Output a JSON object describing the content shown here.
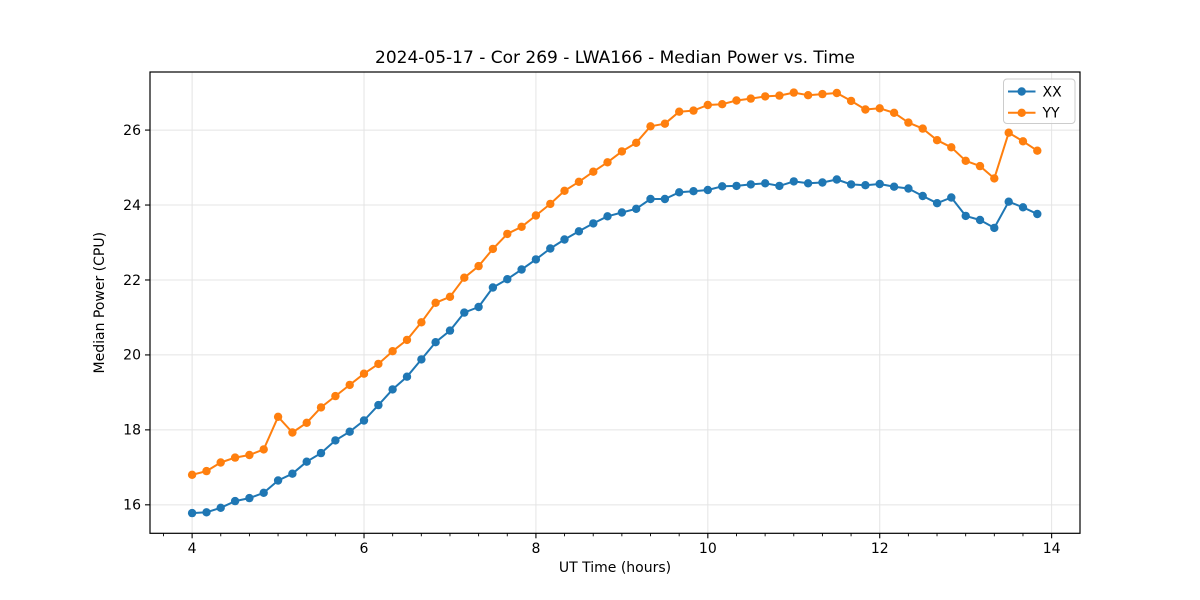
{
  "figure": {
    "title": "2024-05-17 - Cor 269 - LWA166 - Median Power vs. Time"
  },
  "chart_data": {
    "type": "line",
    "title": "2024-05-17 - Cor 269 - LWA166 - Median Power vs. Time",
    "xlabel": "UT Time (hours)",
    "ylabel": "Median Power (CPU)",
    "xlim": [
      3.51,
      14.33
    ],
    "ylim": [
      15.24,
      27.55
    ],
    "x_major_ticks": [
      4,
      6,
      8,
      10,
      12,
      14
    ],
    "y_major_ticks": [
      16,
      18,
      20,
      22,
      24,
      26
    ],
    "x_minor_tick_step": 0.33333,
    "grid": true,
    "grid_color": "#e4e4e4",
    "legend": {
      "position": "upper right"
    },
    "x": [
      4.0,
      4.167,
      4.333,
      4.5,
      4.667,
      4.833,
      5.0,
      5.167,
      5.333,
      5.5,
      5.667,
      5.833,
      6.0,
      6.167,
      6.333,
      6.5,
      6.667,
      6.833,
      7.0,
      7.167,
      7.333,
      7.5,
      7.667,
      7.833,
      8.0,
      8.167,
      8.333,
      8.5,
      8.667,
      8.833,
      9.0,
      9.167,
      9.333,
      9.5,
      9.667,
      9.833,
      10.0,
      10.167,
      10.333,
      10.5,
      10.667,
      10.833,
      11.0,
      11.167,
      11.333,
      11.5,
      11.667,
      11.833,
      12.0,
      12.167,
      12.333,
      12.5,
      12.667,
      12.833,
      13.0,
      13.167,
      13.333,
      13.5,
      13.667,
      13.833
    ],
    "series": [
      {
        "name": "XX",
        "color": "#1f77b4",
        "values": [
          15.78,
          15.8,
          15.92,
          16.1,
          16.18,
          16.32,
          16.65,
          16.83,
          17.15,
          17.38,
          17.72,
          17.95,
          18.25,
          18.66,
          19.08,
          19.42,
          19.88,
          20.34,
          20.65,
          21.13,
          21.28,
          21.8,
          22.02,
          22.28,
          22.55,
          22.84,
          23.08,
          23.3,
          23.51,
          23.7,
          23.8,
          23.9,
          24.16,
          24.16,
          24.34,
          24.37,
          24.4,
          24.5,
          24.51,
          24.55,
          24.58,
          24.51,
          24.63,
          24.58,
          24.6,
          24.68,
          24.55,
          24.53,
          24.56,
          24.49,
          24.44,
          24.24,
          24.05,
          24.2,
          23.71,
          23.6,
          23.39,
          24.09,
          23.94,
          23.76
        ]
      },
      {
        "name": "YY",
        "color": "#ff7f0e",
        "values": [
          16.8,
          16.9,
          17.13,
          17.26,
          17.33,
          17.48,
          18.35,
          17.93,
          18.19,
          18.6,
          18.9,
          19.2,
          19.5,
          19.76,
          20.1,
          20.4,
          20.87,
          21.39,
          21.55,
          22.06,
          22.37,
          22.83,
          23.23,
          23.42,
          23.72,
          24.03,
          24.38,
          24.62,
          24.89,
          25.14,
          25.43,
          25.66,
          26.1,
          26.17,
          26.49,
          26.52,
          26.67,
          26.69,
          26.79,
          26.84,
          26.9,
          26.92,
          27.0,
          26.93,
          26.96,
          26.99,
          26.78,
          26.55,
          26.58,
          26.46,
          26.2,
          26.04,
          25.73,
          25.54,
          25.18,
          25.04,
          24.71,
          25.93,
          25.7,
          25.45
        ]
      }
    ]
  }
}
